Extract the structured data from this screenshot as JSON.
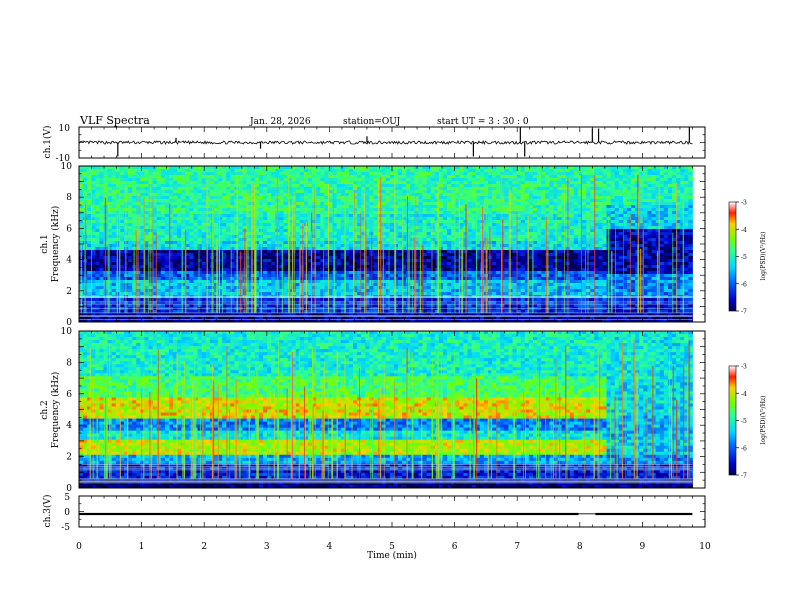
{
  "header": {
    "title": "VLF Spectra",
    "date": "Jan. 28, 2026",
    "station": "station=OUJ",
    "start_ut": "start UT =  3 : 30 : 0"
  },
  "chart_data": [
    {
      "id": "ch1-waveform",
      "type": "line",
      "ylabel": "ch.1(V)",
      "ylim": [
        -10,
        10
      ],
      "yticks": [
        10,
        -10
      ],
      "xlim": [
        0,
        10
      ],
      "data_end_min": 9.8,
      "baseline": 0.0,
      "noise_amplitude": 1.0,
      "spikes": [
        {
          "t": 0.62,
          "v": -9
        },
        {
          "t": 1.55,
          "v": 3
        },
        {
          "t": 2.9,
          "v": -4
        },
        {
          "t": 4.6,
          "v": 4
        },
        {
          "t": 6.3,
          "v": -9
        },
        {
          "t": 7.05,
          "v": 10
        },
        {
          "t": 7.12,
          "v": -9
        },
        {
          "t": 8.2,
          "v": 9
        },
        {
          "t": 8.3,
          "v": 9
        },
        {
          "t": 9.75,
          "v": 10
        }
      ]
    },
    {
      "id": "ch1-spectrogram",
      "type": "heatmap",
      "ylabel_line1": "ch.1",
      "ylabel_line2": "Frequency (kHz)",
      "ylim": [
        0,
        10
      ],
      "yticks": [
        0,
        2,
        4,
        6,
        8,
        10
      ],
      "xlim": [
        0,
        10
      ],
      "data_end_min": 9.8,
      "change_at_min": 8.45,
      "colorbar": {
        "label": "log(PSD)(V²/Hz)",
        "range": [
          -7,
          -3
        ],
        "ticks": [
          "-3",
          "-4",
          "-5",
          "-6",
          "-7"
        ]
      },
      "bands_before": [
        {
          "from": 0.0,
          "to": 0.5,
          "level": -6.8
        },
        {
          "from": 0.5,
          "to": 1.5,
          "level": -6.3
        },
        {
          "from": 1.5,
          "to": 2.6,
          "level": -5.5
        },
        {
          "from": 2.6,
          "to": 3.3,
          "level": -6.0
        },
        {
          "from": 3.3,
          "to": 4.6,
          "level": -6.7
        },
        {
          "from": 4.6,
          "to": 5.2,
          "level": -5.3
        },
        {
          "from": 5.2,
          "to": 7.0,
          "level": -5.1
        },
        {
          "from": 7.0,
          "to": 10.0,
          "level": -4.9
        }
      ],
      "bands_after": [
        {
          "from": 0.0,
          "to": 0.5,
          "level": -6.8
        },
        {
          "from": 0.5,
          "to": 1.5,
          "level": -6.4
        },
        {
          "from": 1.5,
          "to": 3.0,
          "level": -5.8
        },
        {
          "from": 3.0,
          "to": 6.0,
          "level": -6.6
        },
        {
          "from": 6.0,
          "to": 7.5,
          "level": -5.4
        },
        {
          "from": 7.5,
          "to": 10.0,
          "level": -5.0
        }
      ]
    },
    {
      "id": "ch2-spectrogram",
      "type": "heatmap",
      "ylabel_line1": "ch.2",
      "ylabel_line2": "Frequency (kHz)",
      "ylim": [
        0,
        10
      ],
      "yticks": [
        0,
        2,
        4,
        6,
        8,
        10
      ],
      "xlim": [
        0,
        10
      ],
      "data_end_min": 9.8,
      "change_at_min": 8.45,
      "colorbar": {
        "label": "log(PSD)(V²/Hz)",
        "range": [
          -7,
          -3
        ],
        "ticks": [
          "-3",
          "-4",
          "-5",
          "-6",
          "-7"
        ]
      },
      "bands_before": [
        {
          "from": 0.0,
          "to": 0.5,
          "level": -6.9
        },
        {
          "from": 0.5,
          "to": 1.5,
          "level": -6.4
        },
        {
          "from": 1.5,
          "to": 2.2,
          "level": -5.6
        },
        {
          "from": 2.2,
          "to": 3.0,
          "level": -4.1
        },
        {
          "from": 3.0,
          "to": 3.6,
          "level": -5.2
        },
        {
          "from": 3.6,
          "to": 4.5,
          "level": -5.8
        },
        {
          "from": 4.5,
          "to": 5.7,
          "level": -4.0
        },
        {
          "from": 5.7,
          "to": 7.2,
          "level": -4.7
        },
        {
          "from": 7.2,
          "to": 10.0,
          "level": -5.1
        }
      ],
      "bands_after": [
        {
          "from": 0.0,
          "to": 0.5,
          "level": -6.9
        },
        {
          "from": 0.5,
          "to": 1.5,
          "level": -6.4
        },
        {
          "from": 1.5,
          "to": 2.2,
          "level": -5.8
        },
        {
          "from": 2.2,
          "to": 3.0,
          "level": -5.4
        },
        {
          "from": 3.0,
          "to": 4.6,
          "level": -5.5
        },
        {
          "from": 4.6,
          "to": 7.0,
          "level": -5.3
        },
        {
          "from": 7.0,
          "to": 10.0,
          "level": -5.2
        }
      ]
    },
    {
      "id": "ch3-waveform",
      "type": "line",
      "ylabel": "ch.3(V)",
      "ylim": [
        -5,
        5
      ],
      "yticks": [
        5,
        0,
        -5
      ],
      "xlim": [
        0,
        10
      ],
      "xlabel": "Time (min)",
      "xticks": [
        0,
        1,
        2,
        3,
        4,
        5,
        6,
        7,
        8,
        9,
        10
      ],
      "data_end_min": 9.8,
      "baseline": -0.8,
      "noise_amplitude": 0.35,
      "gap": [
        7.98,
        8.25
      ]
    }
  ]
}
